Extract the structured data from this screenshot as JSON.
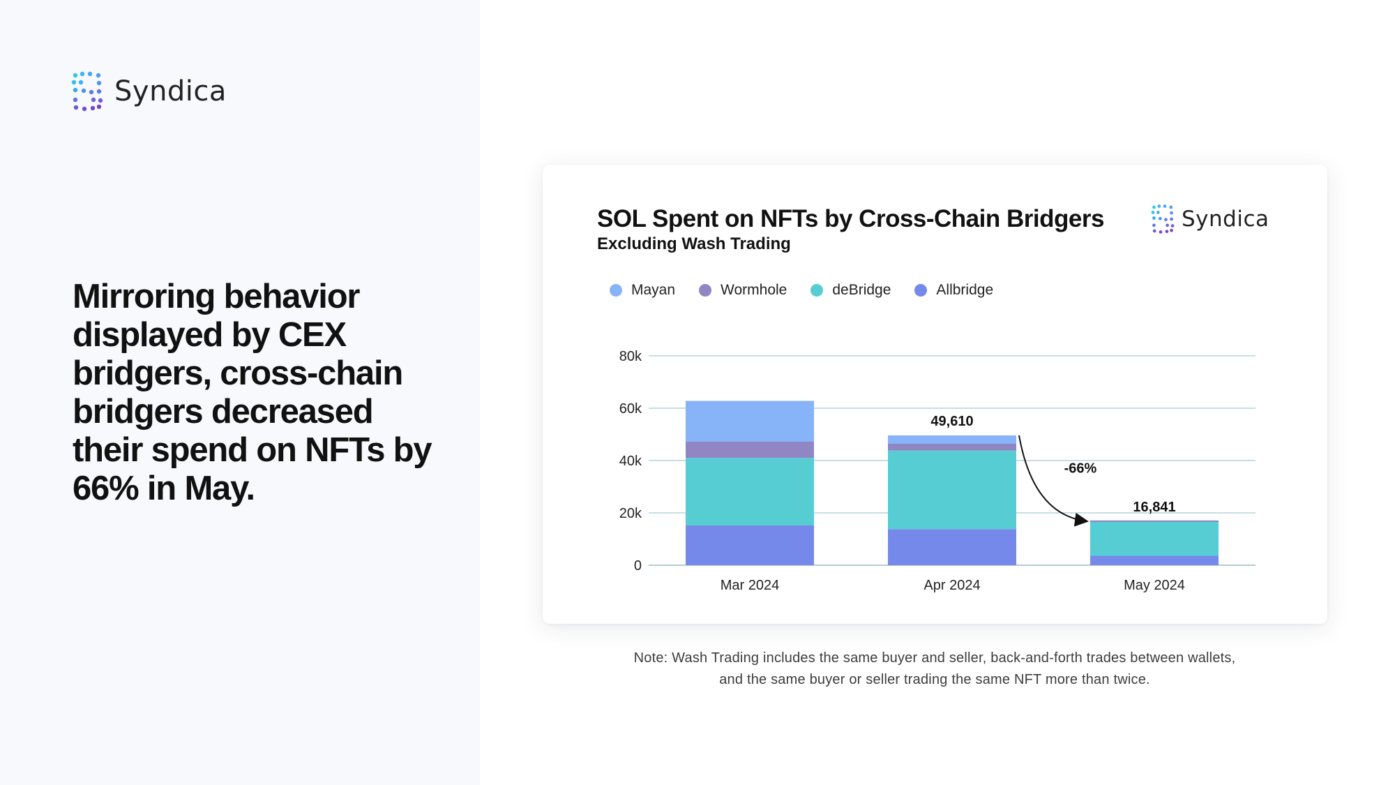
{
  "brand": {
    "name": "Syndica"
  },
  "headline": "Mirroring behavior displayed by CEX bridgers, cross-chain bridgers decreased their spend on NFTs by 66% in May.",
  "note": "Note: Wash Trading includes the same buyer and seller, back-and-forth trades between wallets, and the same buyer or seller trading the same NFT more than twice.",
  "chart_data": {
    "type": "bar",
    "stacked": true,
    "title": "SOL Spent on NFTs by Cross-Chain Bridgers",
    "subtitle": "Excluding Wash Trading",
    "categories": [
      "Mar 2024",
      "Apr 2024",
      "May 2024"
    ],
    "series": [
      {
        "name": "Allbridge",
        "color": "#7489ea",
        "values": [
          15200,
          13800,
          3600
        ]
      },
      {
        "name": "deBridge",
        "color": "#56cdd3",
        "values": [
          25800,
          30000,
          13241
        ]
      },
      {
        "name": "Wormhole",
        "color": "#8f86c3",
        "values": [
          6200,
          2600,
          0
        ]
      },
      {
        "name": "Mayan",
        "color": "#87b3f8",
        "values": [
          15600,
          3210,
          0
        ]
      }
    ],
    "legend_order": [
      "Mayan",
      "Wormhole",
      "deBridge",
      "Allbridge"
    ],
    "legend_position": "top-left",
    "data_labels": [
      {
        "category": "Apr 2024",
        "text": "49,610"
      },
      {
        "category": "May 2024",
        "text": "16,841"
      }
    ],
    "annotation": {
      "text": "-66%",
      "from": "Apr 2024",
      "to": "May 2024"
    },
    "y_ticks": [
      0,
      20000,
      40000,
      60000,
      80000
    ],
    "y_tick_labels": [
      "0",
      "20k",
      "40k",
      "60k",
      "80k"
    ],
    "ylim": [
      0,
      80000
    ],
    "grid": true,
    "xlabel": "",
    "ylabel": ""
  }
}
